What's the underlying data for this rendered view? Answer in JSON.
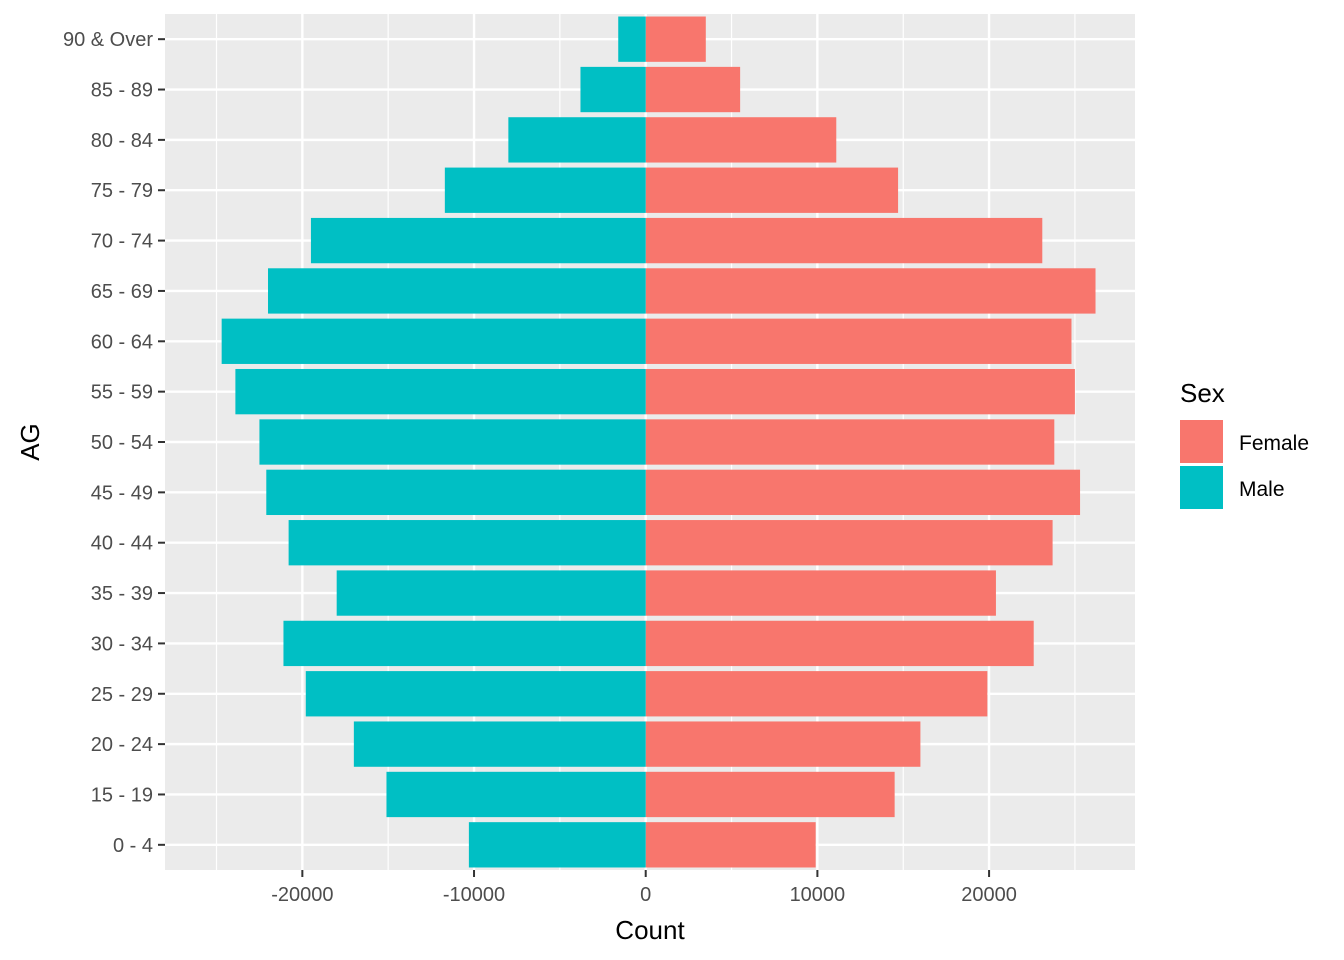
{
  "chart_data": {
    "type": "bar",
    "orientation": "horizontal",
    "title": "",
    "xlabel": "Count",
    "ylabel": "AG",
    "xlim": [
      -28000,
      28500
    ],
    "xticks": [
      -20000,
      -10000,
      0,
      10000,
      20000
    ],
    "xtick_labels": [
      "-20000",
      "-10000",
      "0",
      "10000",
      "20000"
    ],
    "grid": true,
    "categories": [
      "0 - 4",
      "15 - 19",
      "20 - 24",
      "25 - 29",
      "30 - 34",
      "35 - 39",
      "40 - 44",
      "45 - 49",
      "50 - 54",
      "55 - 59",
      "60 - 64",
      "65 - 69",
      "70 - 74",
      "75 - 79",
      "80 - 84",
      "85 - 89",
      "90 & Over"
    ],
    "series": [
      {
        "name": "Female",
        "color": "#F8766D",
        "values": [
          9900,
          14500,
          16000,
          19900,
          22600,
          20400,
          23700,
          25300,
          23800,
          25000,
          24800,
          26200,
          23100,
          14700,
          11100,
          5500,
          3500
        ]
      },
      {
        "name": "Male",
        "color": "#00BFC4",
        "values": [
          -10300,
          -15100,
          -17000,
          -19800,
          -21100,
          -18000,
          -20800,
          -22100,
          -22500,
          -23900,
          -24700,
          -22000,
          -19500,
          -11700,
          -8000,
          -3800,
          -1600
        ]
      }
    ],
    "legend": {
      "title": "Sex",
      "position": "right",
      "entries": [
        "Female",
        "Male"
      ]
    },
    "background": "#EBEBEB",
    "grid_color": "#FFFFFF"
  }
}
